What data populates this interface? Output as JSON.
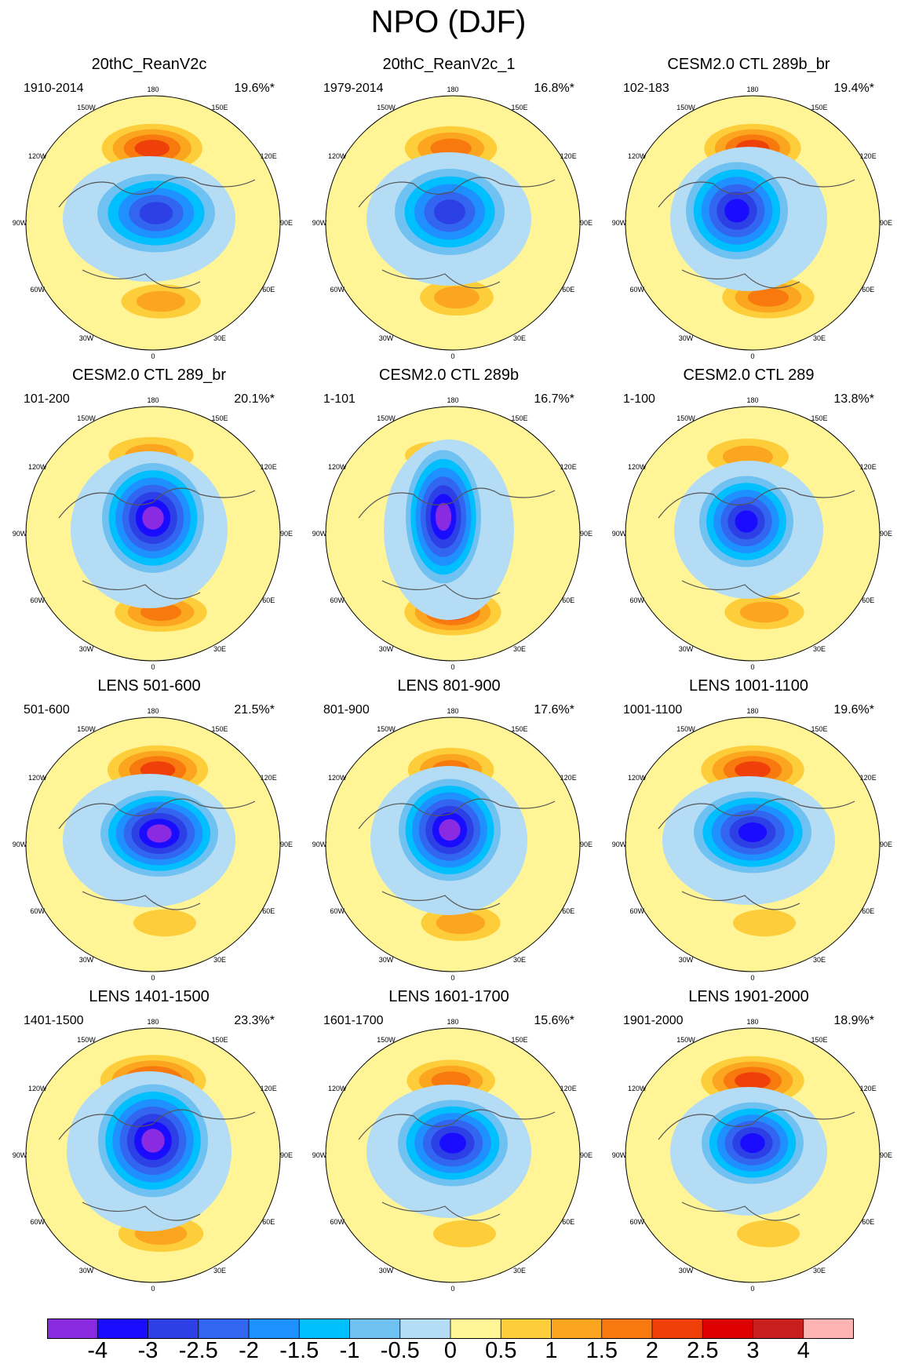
{
  "title": "NPO (DJF)",
  "chart_data": [
    {
      "type": "heatmap",
      "title": "20thC_ReanV2c",
      "period": "1910-2014",
      "percent": "19.6%*",
      "pos": {
        "c": 169,
        "dist": 95,
        "rx": 78,
        "ry": 38,
        "v": 2.5
      },
      "neg": {
        "c": 180,
        "dist": 65,
        "rx": 75,
        "ry": 50,
        "v": -2.5
      },
      "atl": {
        "c": 10,
        "dist": 100,
        "rx": 70,
        "ry": 30,
        "v": 1.5
      }
    },
    {
      "type": "heatmap",
      "title": "20thC_ReanV2c_1",
      "period": "1979-2014",
      "percent": "16.8%*",
      "pos": {
        "c": 168,
        "dist": 95,
        "rx": 75,
        "ry": 36,
        "v": 2.0
      },
      "neg": {
        "c": 170,
        "dist": 60,
        "rx": 70,
        "ry": 55,
        "v": -2.5
      },
      "atl": {
        "c": 5,
        "dist": 95,
        "rx": 65,
        "ry": 32,
        "v": 1.5
      }
    },
    {
      "type": "heatmap",
      "title": "CESM2.0 CTL 289b_br",
      "period": "102-183",
      "percent": "19.4%*",
      "pos": {
        "c": 170,
        "dist": 95,
        "rx": 75,
        "ry": 38,
        "v": 2.5
      },
      "neg": {
        "c": 150,
        "dist": 55,
        "rx": 65,
        "ry": 62,
        "v": -3.0
      },
      "atl": {
        "c": 20,
        "dist": 95,
        "rx": 75,
        "ry": 34,
        "v": 2.0
      }
    },
    {
      "type": "heatmap",
      "title": "CESM2.0 CTL 289_br",
      "period": "101-200",
      "percent": "20.1%*",
      "pos": {
        "c": 168,
        "dist": 100,
        "rx": 75,
        "ry": 32,
        "v": 1.5
      },
      "neg": {
        "c": 175,
        "dist": 40,
        "rx": 65,
        "ry": 70,
        "v": -3.5
      },
      "atl": {
        "c": 10,
        "dist": 100,
        "rx": 75,
        "ry": 32,
        "v": 2.0
      }
    },
    {
      "type": "heatmap",
      "title": "CESM2.0 CTL 289b",
      "period": "1-101",
      "percent": "16.7%*",
      "pos": {
        "c": 150,
        "dist": 100,
        "rx": 60,
        "ry": 28,
        "v": 1.0
      },
      "neg": {
        "c": 160,
        "dist": 35,
        "rx": 48,
        "ry": 85,
        "v": -3.5
      },
      "atl": {
        "c": 0,
        "dist": 100,
        "rx": 75,
        "ry": 36,
        "v": 2.5
      }
    },
    {
      "type": "heatmap",
      "title": "CESM2.0 CTL 289",
      "period": "1-100",
      "percent": "13.8%*",
      "pos": {
        "c": 165,
        "dist": 98,
        "rx": 72,
        "ry": 32,
        "v": 1.5
      },
      "neg": {
        "c": 165,
        "dist": 55,
        "rx": 60,
        "ry": 58,
        "v": -3.0
      },
      "atl": {
        "c": 15,
        "dist": 100,
        "rx": 70,
        "ry": 30,
        "v": 1.5
      }
    },
    {
      "type": "heatmap",
      "title": "LENS 501-600",
      "period": "501-600",
      "percent": "21.5%*",
      "pos": {
        "c": 175,
        "dist": 95,
        "rx": 78,
        "ry": 38,
        "v": 2.5
      },
      "neg": {
        "c": 185,
        "dist": 60,
        "rx": 75,
        "ry": 55,
        "v": -3.5
      },
      "atl": {
        "c": 15,
        "dist": 100,
        "rx": 65,
        "ry": 28,
        "v": 1.0
      }
    },
    {
      "type": "heatmap",
      "title": "LENS 801-900",
      "period": "801-900",
      "percent": "17.6%*",
      "pos": {
        "c": 168,
        "dist": 95,
        "rx": 70,
        "ry": 36,
        "v": 2.0
      },
      "neg": {
        "c": 170,
        "dist": 45,
        "rx": 65,
        "ry": 65,
        "v": -3.5
      },
      "atl": {
        "c": 10,
        "dist": 100,
        "rx": 70,
        "ry": 32,
        "v": 1.5
      }
    },
    {
      "type": "heatmap",
      "title": "LENS 1001-1100",
      "period": "1001-1100",
      "percent": "19.6%*",
      "pos": {
        "c": 170,
        "dist": 95,
        "rx": 80,
        "ry": 38,
        "v": 2.5
      },
      "neg": {
        "c": 175,
        "dist": 55,
        "rx": 75,
        "ry": 52,
        "v": -3.0
      },
      "atl": {
        "c": 15,
        "dist": 100,
        "rx": 65,
        "ry": 28,
        "v": 1.0
      }
    },
    {
      "type": "heatmap",
      "title": "LENS 1401-1500",
      "period": "1401-1500",
      "percent": "23.3%*",
      "pos": {
        "c": 170,
        "dist": 95,
        "rx": 82,
        "ry": 40,
        "v": 2.5
      },
      "neg": {
        "c": 175,
        "dist": 45,
        "rx": 70,
        "ry": 72,
        "v": -3.5
      },
      "atl": {
        "c": 10,
        "dist": 100,
        "rx": 75,
        "ry": 32,
        "v": 1.5
      }
    },
    {
      "type": "heatmap",
      "title": "LENS 1601-1700",
      "period": "1601-1700",
      "percent": "15.6%*",
      "pos": {
        "c": 168,
        "dist": 95,
        "rx": 72,
        "ry": 34,
        "v": 2.0
      },
      "neg": {
        "c": 175,
        "dist": 55,
        "rx": 70,
        "ry": 55,
        "v": -3.0
      },
      "atl": {
        "c": 15,
        "dist": 100,
        "rx": 65,
        "ry": 28,
        "v": 1.0
      }
    },
    {
      "type": "heatmap",
      "title": "LENS 1901-2000",
      "period": "1901-2000",
      "percent": "18.9%*",
      "pos": {
        "c": 170,
        "dist": 95,
        "rx": 80,
        "ry": 38,
        "v": 2.5
      },
      "neg": {
        "c": 175,
        "dist": 55,
        "rx": 65,
        "ry": 52,
        "v": -3.0
      },
      "atl": {
        "c": 20,
        "dist": 100,
        "rx": 65,
        "ry": 28,
        "v": 1.0
      }
    }
  ],
  "lon_labels": [
    "180",
    "150E",
    "120E",
    "90E",
    "60E",
    "30E",
    "0",
    "30W",
    "60W",
    "90W",
    "120W",
    "150W"
  ],
  "colorbar": {
    "labels": [
      "-4",
      "-3",
      "-2.5",
      "-2",
      "-1.5",
      "-1",
      "-0.5",
      "0",
      "0.5",
      "1",
      "1.5",
      "2",
      "2.5",
      "3",
      "4"
    ],
    "colors": [
      "#8a2be2",
      "#1a0dff",
      "#2d40e6",
      "#3366f0",
      "#1e90ff",
      "#00bfff",
      "#6ec1f0",
      "#b4dcf5",
      "#fff596",
      "#fdcd3a",
      "#fca51e",
      "#f8790e",
      "#f0400a",
      "#dc0000",
      "#c81e1e",
      "#ffb4b4"
    ]
  }
}
